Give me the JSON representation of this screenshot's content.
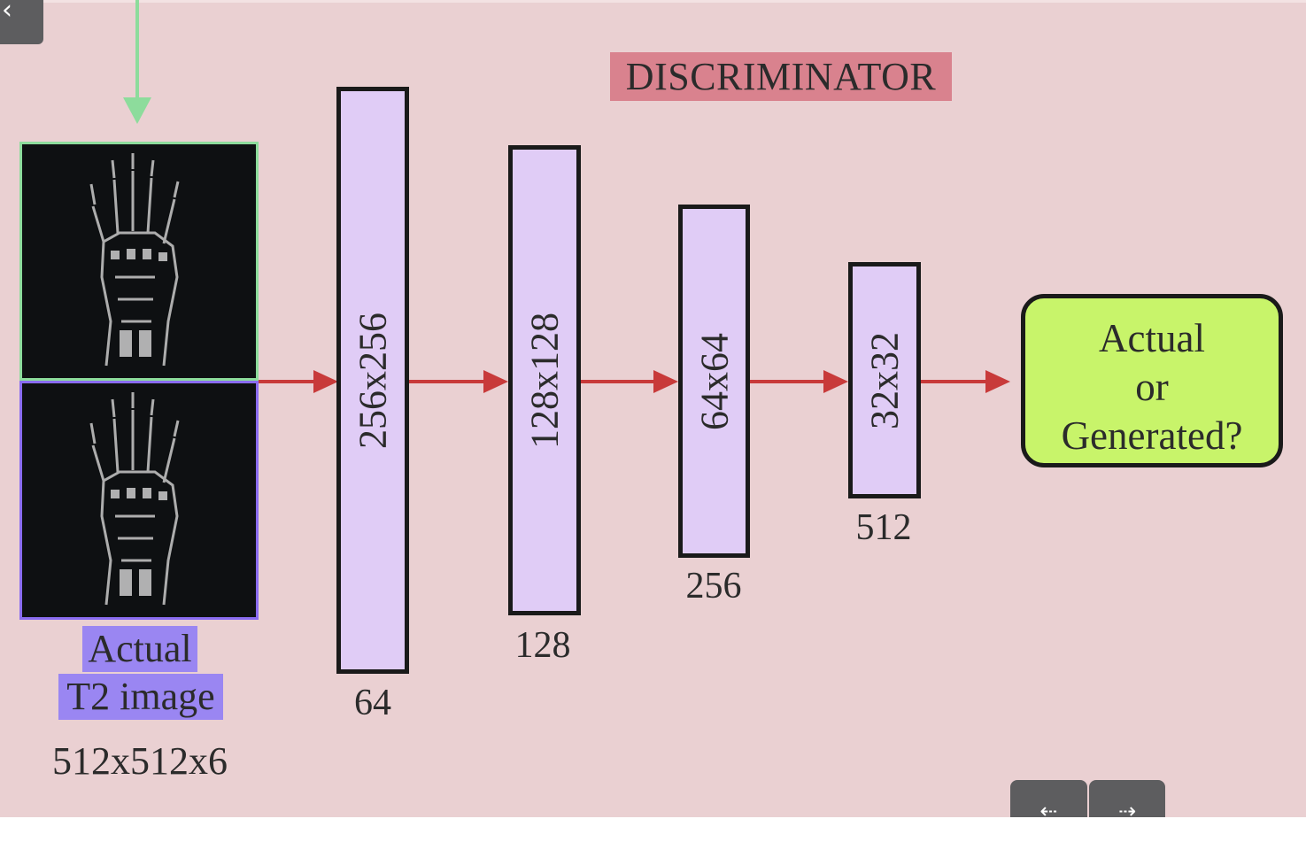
{
  "diagram": {
    "title": "DISCRIMINATOR",
    "input": {
      "label_line1": "Actual",
      "label_line2": "T2 image",
      "dimensions": "512x512x6"
    },
    "layers": [
      {
        "size": "256x256",
        "channels": "64"
      },
      {
        "size": "128x128",
        "channels": "128"
      },
      {
        "size": "64x64",
        "channels": "256"
      },
      {
        "size": "32x32",
        "channels": "512"
      }
    ],
    "output": {
      "line1": "Actual",
      "line2": "or",
      "line3": "Generated?"
    }
  },
  "navigation": {
    "back_icon": "chevron-left-icon",
    "back_glyph": "‹",
    "prev_icon": "arrow-left-icon",
    "prev_glyph": "⇠",
    "next_icon": "arrow-right-icon",
    "next_glyph": "⇢"
  },
  "colors": {
    "background": "#ead0d2",
    "title_highlight": "#d9828e",
    "layer_fill": "#e0ccf6",
    "output_fill": "#c8f46a",
    "arrow": "#c83a3a",
    "input_arrow": "#8ddc9c",
    "actual_border": "#8ddc9c",
    "t2_border": "#8a6cf0",
    "label_highlight": "#9a86f2"
  }
}
